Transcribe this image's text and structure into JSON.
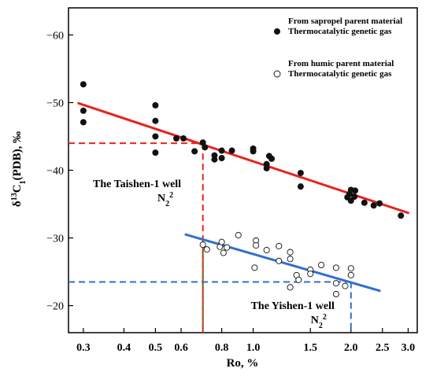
{
  "chart_data": {
    "type": "scatter",
    "x_scale": "log",
    "y_reversed": true,
    "xlabel": "Ro, %",
    "ylabel": "δ13C1(PDB), ‰",
    "xlim": [
      0.27,
      3.2
    ],
    "ylim": [
      -16,
      -64
    ],
    "x_ticks": [
      0.3,
      0.4,
      0.5,
      0.6,
      0.8,
      1.0,
      1.5,
      2.0,
      2.5,
      3.0
    ],
    "x_tick_labels": [
      "0.3",
      "0.4",
      "0.5",
      "0.6",
      "0.8",
      "1.0",
      "1.5",
      "2.0",
      "2.5",
      "3.0"
    ],
    "y_ticks": [
      -60,
      -50,
      -40,
      -30,
      -20
    ],
    "y_tick_labels": [
      "−60",
      "−50",
      "−40",
      "−30",
      "−20"
    ],
    "grid": false,
    "legend_position": "top-right",
    "series": [
      {
        "name": "From sapropel parent material Thermocatalytic genetic gas",
        "legend_lines": [
          "From sapropel parent material",
          "Thermocatalytic genetic gas"
        ],
        "marker": "filled-circle",
        "color": "#111111",
        "points": [
          [
            0.3,
            -52.7
          ],
          [
            0.3,
            -48.8
          ],
          [
            0.3,
            -47.1
          ],
          [
            0.5,
            -49.6
          ],
          [
            0.5,
            -47.3
          ],
          [
            0.5,
            -45.0
          ],
          [
            0.5,
            -42.6
          ],
          [
            0.58,
            -44.7
          ],
          [
            0.61,
            -44.7
          ],
          [
            0.66,
            -42.8
          ],
          [
            0.7,
            -44.1
          ],
          [
            0.71,
            -43.4
          ],
          [
            0.76,
            -42.2
          ],
          [
            0.76,
            -41.6
          ],
          [
            0.8,
            -42.9
          ],
          [
            0.8,
            -41.8
          ],
          [
            0.86,
            -42.9
          ],
          [
            1.0,
            -43.2
          ],
          [
            1.0,
            -42.8
          ],
          [
            1.1,
            -40.9
          ],
          [
            1.1,
            -40.3
          ],
          [
            1.12,
            -42.1
          ],
          [
            1.14,
            -41.7
          ],
          [
            1.4,
            -39.6
          ],
          [
            1.4,
            -37.6
          ],
          [
            1.95,
            -36.0
          ],
          [
            1.98,
            -36.5
          ],
          [
            2.0,
            -37.1
          ],
          [
            2.0,
            -35.5
          ],
          [
            2.05,
            -36.1
          ],
          [
            2.06,
            -37.0
          ],
          [
            2.2,
            -35.2
          ],
          [
            2.35,
            -34.8
          ],
          [
            2.45,
            -35.1
          ],
          [
            2.85,
            -33.3
          ]
        ]
      },
      {
        "name": "From humic parent material Thermocatalytic genetic gas",
        "legend_lines": [
          "From humic parent material",
          "Thermocatalytic genetic gas"
        ],
        "marker": "open-circle",
        "color": "#111111",
        "points": [
          [
            0.7,
            -29.0
          ],
          [
            0.72,
            -28.3
          ],
          [
            0.79,
            -28.7
          ],
          [
            0.8,
            -29.4
          ],
          [
            0.81,
            -27.8
          ],
          [
            0.83,
            -28.6
          ],
          [
            0.9,
            -30.4
          ],
          [
            1.02,
            -29.6
          ],
          [
            1.02,
            -28.9
          ],
          [
            1.01,
            -25.6
          ],
          [
            1.1,
            -28.2
          ],
          [
            1.2,
            -28.8
          ],
          [
            1.2,
            -26.6
          ],
          [
            1.3,
            -27.9
          ],
          [
            1.3,
            -26.9
          ],
          [
            1.3,
            -22.7
          ],
          [
            1.36,
            -24.5
          ],
          [
            1.38,
            -23.8
          ],
          [
            1.5,
            -25.3
          ],
          [
            1.5,
            -24.7
          ],
          [
            1.62,
            -26.0
          ],
          [
            1.8,
            -25.6
          ],
          [
            1.8,
            -23.3
          ],
          [
            1.8,
            -21.7
          ],
          [
            1.92,
            -22.9
          ],
          [
            2.0,
            -25.5
          ],
          [
            2.0,
            -24.5
          ]
        ]
      }
    ],
    "trend_lines": [
      {
        "series": "From sapropel parent material Thermocatalytic genetic gas",
        "color": "#e8231f",
        "from": [
          0.29,
          -49.9
        ],
        "to": [
          3.0,
          -33.7
        ]
      },
      {
        "series": "From humic parent material Thermocatalytic genetic gas",
        "color": "#2e6fd0",
        "from": [
          0.62,
          -30.5
        ],
        "to": [
          2.45,
          -22.2
        ]
      }
    ],
    "reference_lines": [
      {
        "color": "#e8231f",
        "x": 0.7,
        "y": -44.0
      },
      {
        "color": "#2e6fd0",
        "x": 2.0,
        "y": -23.5
      }
    ],
    "vertical_marker": {
      "color": "#7a6b2a",
      "x": 0.7,
      "y_from": -29.5
    },
    "annotations": [
      {
        "line1": "The Taishen-1 well",
        "line2_base": "N",
        "line2_sub": "2",
        "line2_sup": "2",
        "x": 0.6,
        "y": -37.5
      },
      {
        "line1": "The Yishen-1 well",
        "line2_base": "N",
        "line2_sub": "2",
        "line2_sup": "2",
        "x": 1.78,
        "y": -19.5
      }
    ]
  }
}
